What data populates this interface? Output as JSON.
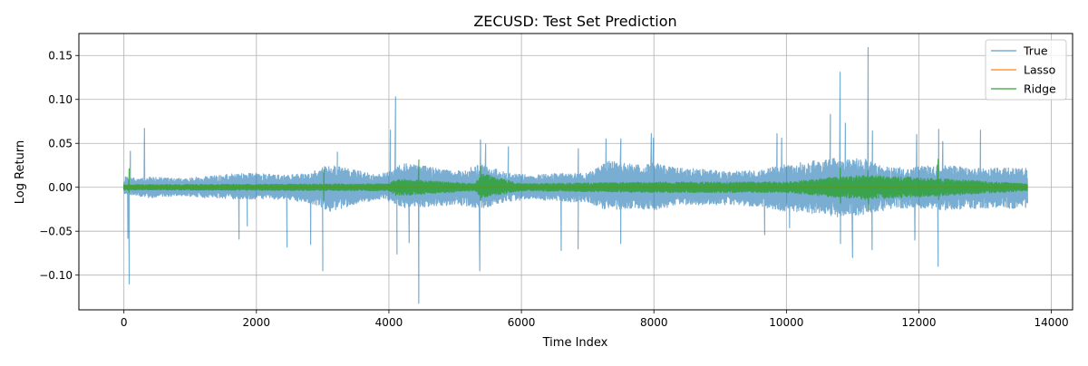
{
  "chart_data": {
    "type": "line",
    "title": "ZECUSD: Test Set Prediction",
    "xlabel": "Time Index",
    "ylabel": "Log Return",
    "xlim": [
      -680,
      14320
    ],
    "ylim": [
      -0.1395,
      0.175
    ],
    "xticks": [
      0,
      2000,
      4000,
      6000,
      8000,
      10000,
      12000,
      14000
    ],
    "xtick_labels": [
      "0",
      "2000",
      "4000",
      "6000",
      "8000",
      "10000",
      "12000",
      "14000"
    ],
    "yticks": [
      -0.1,
      -0.05,
      0.0,
      0.05,
      0.1,
      0.15
    ],
    "ytick_labels": [
      "−0.10",
      "−0.05",
      "0.00",
      "0.05",
      "0.10",
      "0.15"
    ],
    "grid": true,
    "legend_position": "top-right",
    "x_range": [
      0,
      13640
    ],
    "series": [
      {
        "name": "True",
        "color": "#1f77b4",
        "alpha": 0.6,
        "envelope": [
          [
            0,
            0.012,
            -0.008
          ],
          [
            200,
            0.01,
            -0.01
          ],
          [
            400,
            0.012,
            -0.012
          ],
          [
            800,
            0.01,
            -0.01
          ],
          [
            1200,
            0.012,
            -0.012
          ],
          [
            1600,
            0.015,
            -0.013
          ],
          [
            2000,
            0.016,
            -0.014
          ],
          [
            2400,
            0.014,
            -0.014
          ],
          [
            2800,
            0.016,
            -0.018
          ],
          [
            3100,
            0.026,
            -0.028
          ],
          [
            3400,
            0.022,
            -0.022
          ],
          [
            3800,
            0.014,
            -0.014
          ],
          [
            4000,
            0.018,
            -0.016
          ],
          [
            4200,
            0.028,
            -0.024
          ],
          [
            4600,
            0.024,
            -0.022
          ],
          [
            5000,
            0.018,
            -0.02
          ],
          [
            5400,
            0.026,
            -0.024
          ],
          [
            5800,
            0.016,
            -0.016
          ],
          [
            6200,
            0.014,
            -0.014
          ],
          [
            6600,
            0.016,
            -0.016
          ],
          [
            7000,
            0.016,
            -0.018
          ],
          [
            7300,
            0.03,
            -0.026
          ],
          [
            7700,
            0.026,
            -0.024
          ],
          [
            8000,
            0.028,
            -0.026
          ],
          [
            8400,
            0.022,
            -0.02
          ],
          [
            8800,
            0.02,
            -0.02
          ],
          [
            9200,
            0.018,
            -0.02
          ],
          [
            9600,
            0.02,
            -0.022
          ],
          [
            10000,
            0.026,
            -0.028
          ],
          [
            10400,
            0.03,
            -0.03
          ],
          [
            10800,
            0.034,
            -0.034
          ],
          [
            11200,
            0.032,
            -0.032
          ],
          [
            11600,
            0.022,
            -0.024
          ],
          [
            12000,
            0.024,
            -0.024
          ],
          [
            12400,
            0.026,
            -0.026
          ],
          [
            12800,
            0.022,
            -0.024
          ],
          [
            13200,
            0.022,
            -0.024
          ],
          [
            13640,
            0.022,
            -0.024
          ]
        ],
        "spikes": [
          [
            60,
            -0.058
          ],
          [
            80,
            -0.11
          ],
          [
            95,
            0.041
          ],
          [
            310,
            0.067
          ],
          [
            1740,
            -0.059
          ],
          [
            1860,
            -0.044
          ],
          [
            2460,
            -0.068
          ],
          [
            2820,
            -0.065
          ],
          [
            3000,
            -0.095
          ],
          [
            3220,
            0.04
          ],
          [
            4020,
            0.065
          ],
          [
            4100,
            0.103
          ],
          [
            4120,
            -0.076
          ],
          [
            4310,
            -0.063
          ],
          [
            4450,
            -0.132
          ],
          [
            5370,
            -0.095
          ],
          [
            5380,
            0.054
          ],
          [
            5460,
            0.049
          ],
          [
            5800,
            0.046
          ],
          [
            6600,
            -0.072
          ],
          [
            6860,
            0.044
          ],
          [
            6860,
            -0.07
          ],
          [
            7280,
            0.055
          ],
          [
            7500,
            0.055
          ],
          [
            7500,
            -0.064
          ],
          [
            7960,
            0.061
          ],
          [
            7990,
            0.056
          ],
          [
            9670,
            -0.054
          ],
          [
            9860,
            0.061
          ],
          [
            9930,
            0.056
          ],
          [
            10050,
            -0.046
          ],
          [
            10660,
            0.083
          ],
          [
            10810,
            0.131
          ],
          [
            10820,
            -0.064
          ],
          [
            10890,
            0.073
          ],
          [
            11000,
            -0.08
          ],
          [
            11230,
            0.159
          ],
          [
            11300,
            0.064
          ],
          [
            11290,
            -0.071
          ],
          [
            11940,
            -0.06
          ],
          [
            11970,
            0.06
          ],
          [
            12290,
            -0.09
          ],
          [
            12300,
            0.066
          ],
          [
            12360,
            0.052
          ],
          [
            12930,
            0.065
          ]
        ]
      },
      {
        "name": "Lasso",
        "color": "#ff7f0e",
        "alpha": 0.8,
        "values_at": [
          [
            0,
            0.0
          ],
          [
            13640,
            0.0
          ]
        ]
      },
      {
        "name": "Ridge",
        "color": "#2ca02c",
        "alpha": 0.8,
        "envelope": [
          [
            0,
            0.003,
            -0.003
          ],
          [
            4000,
            0.004,
            -0.004
          ],
          [
            4100,
            0.01,
            -0.01
          ],
          [
            5300,
            0.004,
            -0.004
          ],
          [
            5400,
            0.016,
            -0.012
          ],
          [
            6000,
            0.004,
            -0.004
          ],
          [
            8000,
            0.006,
            -0.006
          ],
          [
            10000,
            0.006,
            -0.006
          ],
          [
            10800,
            0.012,
            -0.012
          ],
          [
            11200,
            0.014,
            -0.014
          ],
          [
            12300,
            0.01,
            -0.01
          ],
          [
            13640,
            0.004,
            -0.004
          ]
        ],
        "spikes": [
          [
            80,
            0.021
          ],
          [
            80,
            -0.006
          ],
          [
            3020,
            0.02
          ],
          [
            3020,
            -0.015
          ],
          [
            4450,
            0.031
          ],
          [
            5380,
            0.024
          ],
          [
            5380,
            -0.015
          ],
          [
            10810,
            0.022
          ],
          [
            10820,
            -0.018
          ],
          [
            11230,
            0.019
          ],
          [
            11240,
            -0.026
          ],
          [
            12290,
            0.032
          ],
          [
            12300,
            -0.014
          ]
        ]
      }
    ]
  }
}
